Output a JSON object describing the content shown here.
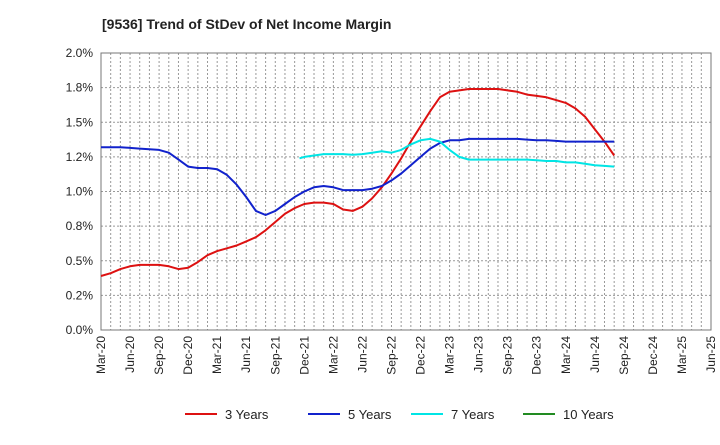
{
  "chart_data": {
    "type": "line",
    "title": "[9536]  Trend of StDev of Net Income Margin",
    "xlabel": "",
    "ylabel": "",
    "ylim": [
      0,
      2.0
    ],
    "y_ticks": [
      "0.0%",
      "0.2%",
      "0.5%",
      "0.8%",
      "1.0%",
      "1.2%",
      "1.5%",
      "1.8%",
      "2.0%"
    ],
    "x_ticks": [
      "Mar-20",
      "Jun-20",
      "Sep-20",
      "Dec-20",
      "Mar-21",
      "Jun-21",
      "Sep-21",
      "Dec-21",
      "Mar-22",
      "Jun-22",
      "Sep-22",
      "Dec-22",
      "Mar-23",
      "Jun-23",
      "Sep-23",
      "Dec-23",
      "Mar-24",
      "Jun-24",
      "Sep-24",
      "Dec-24",
      "Mar-25",
      "Jun-25"
    ],
    "grid": true,
    "legend_position": "bottom",
    "series": [
      {
        "name": "3 Years",
        "color": "#dd1111",
        "values": [
          [
            0,
            0.39
          ],
          [
            1,
            0.41
          ],
          [
            2,
            0.44
          ],
          [
            3,
            0.46
          ],
          [
            4,
            0.47
          ],
          [
            5,
            0.47
          ],
          [
            6,
            0.47
          ],
          [
            7,
            0.46
          ],
          [
            8,
            0.44
          ],
          [
            9,
            0.45
          ],
          [
            10,
            0.49
          ],
          [
            11,
            0.54
          ],
          [
            12,
            0.57
          ],
          [
            13,
            0.59
          ],
          [
            14,
            0.61
          ],
          [
            15,
            0.64
          ],
          [
            16,
            0.67
          ],
          [
            17,
            0.72
          ],
          [
            18,
            0.78
          ],
          [
            19,
            0.84
          ],
          [
            20,
            0.88
          ],
          [
            21,
            0.91
          ],
          [
            22,
            0.92
          ],
          [
            23,
            0.92
          ],
          [
            24,
            0.91
          ],
          [
            25,
            0.87
          ],
          [
            26,
            0.86
          ],
          [
            27,
            0.89
          ],
          [
            28,
            0.95
          ],
          [
            29,
            1.03
          ],
          [
            30,
            1.13
          ],
          [
            31,
            1.24
          ],
          [
            32,
            1.36
          ],
          [
            33,
            1.47
          ],
          [
            34,
            1.58
          ],
          [
            35,
            1.68
          ],
          [
            36,
            1.72
          ],
          [
            37,
            1.73
          ],
          [
            38,
            1.74
          ],
          [
            39,
            1.74
          ],
          [
            40,
            1.74
          ],
          [
            41,
            1.74
          ],
          [
            42,
            1.73
          ],
          [
            43,
            1.72
          ],
          [
            44,
            1.7
          ],
          [
            45,
            1.69
          ],
          [
            46,
            1.68
          ],
          [
            47,
            1.66
          ],
          [
            48,
            1.64
          ],
          [
            49,
            1.6
          ],
          [
            50,
            1.54
          ],
          [
            51,
            1.45
          ],
          [
            52,
            1.36
          ],
          [
            53,
            1.26
          ]
        ]
      },
      {
        "name": "5 Years",
        "color": "#1122cc",
        "values": [
          [
            0,
            1.32
          ],
          [
            1,
            1.32
          ],
          [
            2,
            1.32
          ],
          [
            3,
            1.315
          ],
          [
            4,
            1.31
          ],
          [
            5,
            1.305
          ],
          [
            6,
            1.3
          ],
          [
            7,
            1.28
          ],
          [
            8,
            1.23
          ],
          [
            9,
            1.18
          ],
          [
            10,
            1.17
          ],
          [
            11,
            1.17
          ],
          [
            12,
            1.16
          ],
          [
            13,
            1.12
          ],
          [
            14,
            1.05
          ],
          [
            15,
            0.96
          ],
          [
            16,
            0.86
          ],
          [
            17,
            0.83
          ],
          [
            18,
            0.86
          ],
          [
            19,
            0.91
          ],
          [
            20,
            0.96
          ],
          [
            21,
            1.0
          ],
          [
            22,
            1.03
          ],
          [
            23,
            1.04
          ],
          [
            24,
            1.03
          ],
          [
            25,
            1.01
          ],
          [
            26,
            1.01
          ],
          [
            27,
            1.01
          ],
          [
            28,
            1.02
          ],
          [
            29,
            1.04
          ],
          [
            30,
            1.08
          ],
          [
            31,
            1.13
          ],
          [
            32,
            1.19
          ],
          [
            33,
            1.25
          ],
          [
            34,
            1.31
          ],
          [
            35,
            1.35
          ],
          [
            36,
            1.37
          ],
          [
            37,
            1.37
          ],
          [
            38,
            1.38
          ],
          [
            39,
            1.38
          ],
          [
            40,
            1.38
          ],
          [
            41,
            1.38
          ],
          [
            42,
            1.38
          ],
          [
            43,
            1.38
          ],
          [
            44,
            1.375
          ],
          [
            45,
            1.37
          ],
          [
            46,
            1.37
          ],
          [
            47,
            1.365
          ],
          [
            48,
            1.36
          ],
          [
            49,
            1.36
          ],
          [
            50,
            1.36
          ],
          [
            51,
            1.36
          ],
          [
            52,
            1.36
          ],
          [
            53,
            1.36
          ]
        ]
      },
      {
        "name": "7 Years",
        "color": "#00e5e5",
        "values": [
          [
            20.5,
            1.24
          ],
          [
            21,
            1.25
          ],
          [
            22,
            1.26
          ],
          [
            23,
            1.27
          ],
          [
            24,
            1.27
          ],
          [
            25,
            1.27
          ],
          [
            26,
            1.265
          ],
          [
            27,
            1.27
          ],
          [
            28,
            1.28
          ],
          [
            29,
            1.29
          ],
          [
            30,
            1.28
          ],
          [
            31,
            1.3
          ],
          [
            32,
            1.34
          ],
          [
            33,
            1.37
          ],
          [
            34,
            1.38
          ],
          [
            35,
            1.36
          ],
          [
            36,
            1.3
          ],
          [
            37,
            1.25
          ],
          [
            38,
            1.23
          ],
          [
            39,
            1.23
          ],
          [
            40,
            1.23
          ],
          [
            41,
            1.23
          ],
          [
            42,
            1.23
          ],
          [
            43,
            1.23
          ],
          [
            44,
            1.23
          ],
          [
            45,
            1.225
          ],
          [
            46,
            1.22
          ],
          [
            47,
            1.22
          ],
          [
            48,
            1.21
          ],
          [
            49,
            1.21
          ],
          [
            50,
            1.2
          ],
          [
            51,
            1.19
          ],
          [
            52,
            1.185
          ],
          [
            53,
            1.18
          ]
        ]
      },
      {
        "name": "10 Years",
        "color": "#228b22",
        "values": []
      }
    ]
  }
}
